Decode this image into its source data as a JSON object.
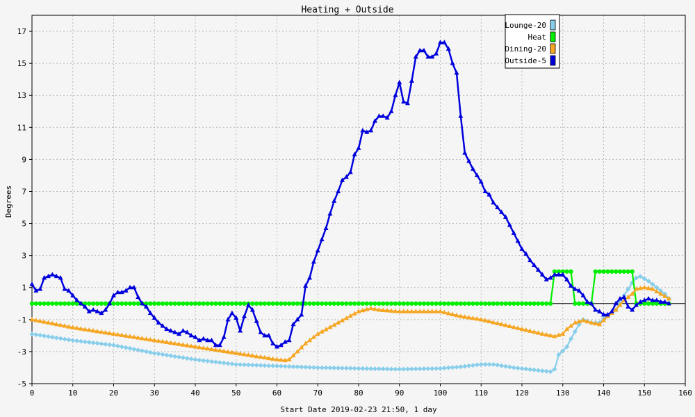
{
  "chart_data": {
    "type": "line",
    "title": "Heating + Outside",
    "xlabel": "Start Date 2019-02-23 21:50, 1 day",
    "ylabel": "Degrees",
    "xlim": [
      0,
      160
    ],
    "ylim": [
      -5,
      18
    ],
    "xticks": [
      0,
      10,
      20,
      30,
      40,
      50,
      60,
      70,
      80,
      90,
      100,
      110,
      120,
      130,
      140,
      150,
      160
    ],
    "yticks": [
      -5,
      -3,
      -1,
      1,
      3,
      5,
      7,
      9,
      11,
      13,
      15,
      17
    ],
    "grid": true,
    "legend_position": "top-right",
    "series": [
      {
        "name": "Lounge-20",
        "color": "#87ceeb",
        "marker": "diamond",
        "points": [
          [
            0,
            -1.9
          ],
          [
            10,
            -2.3
          ],
          [
            20,
            -2.6
          ],
          [
            30,
            -3.1
          ],
          [
            40,
            -3.5
          ],
          [
            50,
            -3.8
          ],
          [
            60,
            -3.9
          ],
          [
            70,
            -4.0
          ],
          [
            80,
            -4.05
          ],
          [
            90,
            -4.1
          ],
          [
            100,
            -4.05
          ],
          [
            105,
            -3.95
          ],
          [
            110,
            -3.8
          ],
          [
            113,
            -3.8
          ],
          [
            118,
            -4.0
          ],
          [
            125,
            -4.2
          ],
          [
            127,
            -4.25
          ],
          [
            128,
            -4.1
          ],
          [
            129,
            -3.2
          ],
          [
            131,
            -2.7
          ],
          [
            132,
            -2.2
          ],
          [
            134,
            -1.3
          ],
          [
            135,
            -1.0
          ],
          [
            137,
            -1.2
          ],
          [
            139,
            -1.2
          ],
          [
            141,
            -0.7
          ],
          [
            143,
            -0.4
          ],
          [
            145,
            0.5
          ],
          [
            147,
            1.3
          ],
          [
            148,
            1.6
          ],
          [
            149,
            1.7
          ],
          [
            151,
            1.4
          ],
          [
            153,
            1.0
          ],
          [
            155,
            0.6
          ],
          [
            156,
            0.3
          ]
        ]
      },
      {
        "name": "Heat",
        "color": "#00ee00",
        "marker": "circle",
        "points": [
          [
            0,
            0
          ],
          [
            127,
            0
          ],
          [
            128,
            2
          ],
          [
            132,
            2
          ],
          [
            133,
            0
          ],
          [
            137,
            0
          ],
          [
            138,
            2
          ],
          [
            147,
            2
          ],
          [
            148,
            0
          ],
          [
            156,
            0
          ]
        ]
      },
      {
        "name": "Dining-20",
        "color": "#f5a623",
        "marker": "triangle",
        "points": [
          [
            0,
            -1.0
          ],
          [
            10,
            -1.5
          ],
          [
            20,
            -1.9
          ],
          [
            30,
            -2.3
          ],
          [
            40,
            -2.7
          ],
          [
            50,
            -3.1
          ],
          [
            55,
            -3.3
          ],
          [
            60,
            -3.5
          ],
          [
            62,
            -3.55
          ],
          [
            63,
            -3.5
          ],
          [
            65,
            -3.0
          ],
          [
            67,
            -2.5
          ],
          [
            70,
            -1.9
          ],
          [
            75,
            -1.2
          ],
          [
            80,
            -0.5
          ],
          [
            83,
            -0.3
          ],
          [
            85,
            -0.4
          ],
          [
            90,
            -0.5
          ],
          [
            95,
            -0.5
          ],
          [
            100,
            -0.5
          ],
          [
            105,
            -0.8
          ],
          [
            110,
            -1.0
          ],
          [
            115,
            -1.3
          ],
          [
            120,
            -1.6
          ],
          [
            125,
            -1.9
          ],
          [
            128,
            -2.05
          ],
          [
            130,
            -1.9
          ],
          [
            131,
            -1.6
          ],
          [
            133,
            -1.2
          ],
          [
            135,
            -1.05
          ],
          [
            137,
            -1.2
          ],
          [
            139,
            -1.3
          ],
          [
            141,
            -0.8
          ],
          [
            143,
            -0.4
          ],
          [
            145,
            0.2
          ],
          [
            147,
            0.6
          ],
          [
            148,
            0.9
          ],
          [
            150,
            1.0
          ],
          [
            152,
            0.9
          ],
          [
            154,
            0.6
          ],
          [
            156,
            0.3
          ]
        ]
      },
      {
        "name": "Outside-5",
        "color": "#0000dd",
        "marker": "triangle",
        "points": [
          [
            0,
            1.2
          ],
          [
            1,
            0.8
          ],
          [
            2,
            0.9
          ],
          [
            3,
            1.6
          ],
          [
            4,
            1.7
          ],
          [
            5,
            1.8
          ],
          [
            6,
            1.7
          ],
          [
            7,
            1.6
          ],
          [
            8,
            0.9
          ],
          [
            9,
            0.8
          ],
          [
            10,
            0.5
          ],
          [
            11,
            0.2
          ],
          [
            12,
            0.0
          ],
          [
            13,
            -0.2
          ],
          [
            14,
            -0.5
          ],
          [
            15,
            -0.4
          ],
          [
            16,
            -0.5
          ],
          [
            17,
            -0.6
          ],
          [
            18,
            -0.4
          ],
          [
            19,
            0.0
          ],
          [
            20,
            0.5
          ],
          [
            21,
            0.7
          ],
          [
            22,
            0.7
          ],
          [
            23,
            0.8
          ],
          [
            24,
            1.0
          ],
          [
            25,
            1.0
          ],
          [
            26,
            0.4
          ],
          [
            27,
            0.0
          ],
          [
            28,
            -0.2
          ],
          [
            29,
            -0.6
          ],
          [
            30,
            -0.9
          ],
          [
            31,
            -1.2
          ],
          [
            32,
            -1.4
          ],
          [
            33,
            -1.6
          ],
          [
            34,
            -1.7
          ],
          [
            35,
            -1.8
          ],
          [
            36,
            -1.9
          ],
          [
            37,
            -1.7
          ],
          [
            38,
            -1.8
          ],
          [
            39,
            -2.0
          ],
          [
            40,
            -2.1
          ],
          [
            41,
            -2.3
          ],
          [
            42,
            -2.2
          ],
          [
            43,
            -2.3
          ],
          [
            44,
            -2.3
          ],
          [
            45,
            -2.6
          ],
          [
            46,
            -2.6
          ],
          [
            47,
            -2.1
          ],
          [
            48,
            -1.0
          ],
          [
            49,
            -0.6
          ],
          [
            50,
            -0.9
          ],
          [
            51,
            -1.7
          ],
          [
            52,
            -0.8
          ],
          [
            53,
            -0.1
          ],
          [
            54,
            -0.4
          ],
          [
            55,
            -1.1
          ],
          [
            56,
            -1.8
          ],
          [
            57,
            -2.0
          ],
          [
            58,
            -2.0
          ],
          [
            59,
            -2.5
          ],
          [
            60,
            -2.7
          ],
          [
            61,
            -2.6
          ],
          [
            62,
            -2.4
          ],
          [
            63,
            -2.3
          ],
          [
            64,
            -1.3
          ],
          [
            65,
            -1.0
          ],
          [
            66,
            -0.7
          ],
          [
            67,
            1.1
          ],
          [
            68,
            1.6
          ],
          [
            69,
            2.6
          ],
          [
            70,
            3.3
          ],
          [
            71,
            4.0
          ],
          [
            72,
            4.7
          ],
          [
            73,
            5.6
          ],
          [
            74,
            6.4
          ],
          [
            75,
            7.0
          ],
          [
            76,
            7.7
          ],
          [
            77,
            7.9
          ],
          [
            78,
            8.2
          ],
          [
            79,
            9.3
          ],
          [
            80,
            9.7
          ],
          [
            81,
            10.8
          ],
          [
            82,
            10.7
          ],
          [
            83,
            10.8
          ],
          [
            84,
            11.4
          ],
          [
            85,
            11.7
          ],
          [
            86,
            11.7
          ],
          [
            87,
            11.6
          ],
          [
            88,
            12.0
          ],
          [
            89,
            13.0
          ],
          [
            90,
            13.8
          ],
          [
            91,
            12.6
          ],
          [
            92,
            12.5
          ],
          [
            93,
            13.9
          ],
          [
            94,
            15.4
          ],
          [
            95,
            15.8
          ],
          [
            96,
            15.8
          ],
          [
            97,
            15.4
          ],
          [
            98,
            15.4
          ],
          [
            99,
            15.6
          ],
          [
            100,
            16.3
          ],
          [
            101,
            16.3
          ],
          [
            102,
            15.9
          ],
          [
            103,
            15.0
          ],
          [
            104,
            14.4
          ],
          [
            105,
            11.7
          ],
          [
            106,
            9.4
          ],
          [
            107,
            8.9
          ],
          [
            108,
            8.4
          ],
          [
            109,
            8.0
          ],
          [
            110,
            7.6
          ],
          [
            111,
            7.0
          ],
          [
            112,
            6.8
          ],
          [
            113,
            6.3
          ],
          [
            114,
            6.0
          ],
          [
            115,
            5.7
          ],
          [
            116,
            5.4
          ],
          [
            117,
            4.9
          ],
          [
            118,
            4.4
          ],
          [
            119,
            3.9
          ],
          [
            120,
            3.4
          ],
          [
            121,
            3.1
          ],
          [
            122,
            2.7
          ],
          [
            123,
            2.4
          ],
          [
            124,
            2.1
          ],
          [
            125,
            1.8
          ],
          [
            126,
            1.5
          ],
          [
            127,
            1.6
          ],
          [
            128,
            1.8
          ],
          [
            129,
            1.8
          ],
          [
            130,
            1.8
          ],
          [
            131,
            1.5
          ],
          [
            132,
            1.1
          ],
          [
            133,
            0.9
          ],
          [
            134,
            0.8
          ],
          [
            135,
            0.5
          ],
          [
            136,
            0.1
          ],
          [
            137,
            0.0
          ],
          [
            138,
            -0.4
          ],
          [
            139,
            -0.5
          ],
          [
            140,
            -0.7
          ],
          [
            141,
            -0.7
          ],
          [
            142,
            -0.5
          ],
          [
            143,
            0.0
          ],
          [
            144,
            0.3
          ],
          [
            145,
            0.4
          ],
          [
            146,
            -0.2
          ],
          [
            147,
            -0.4
          ],
          [
            148,
            -0.1
          ],
          [
            149,
            0.1
          ],
          [
            150,
            0.2
          ],
          [
            151,
            0.3
          ],
          [
            152,
            0.2
          ],
          [
            153,
            0.2
          ],
          [
            154,
            0.1
          ],
          [
            155,
            0.1
          ],
          [
            156,
            0.0
          ]
        ]
      }
    ]
  }
}
